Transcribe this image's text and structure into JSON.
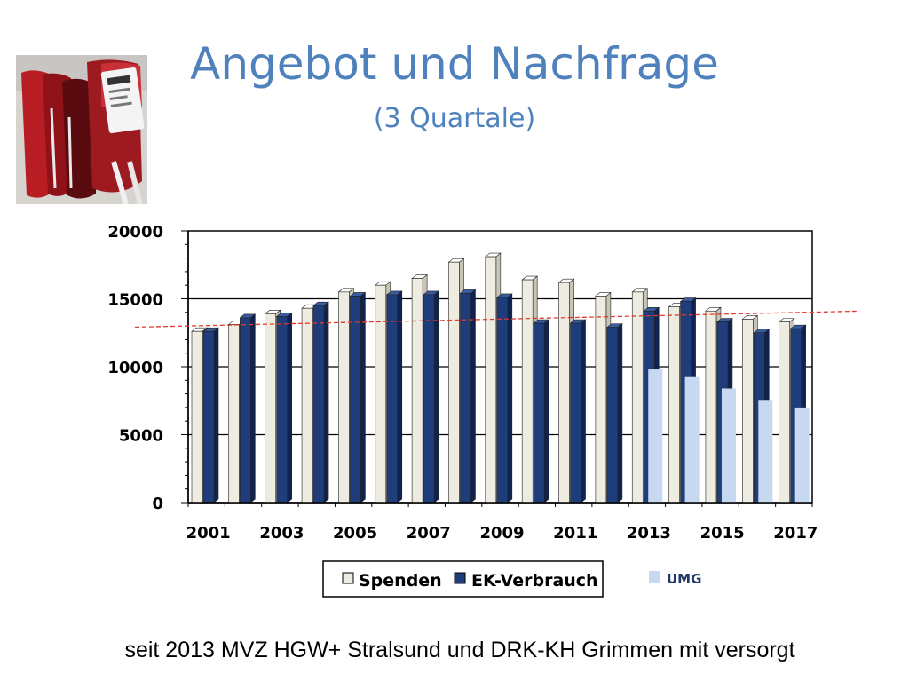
{
  "slide": {
    "title": "Angebot und Nachfrage",
    "subtitle": "(3 Quartale)",
    "footer": "seit 2013 MVZ HGW+ Stralsund und DRK-KH Grimmen mit versorgt"
  },
  "photo": {
    "icon": "blood-bags-photo"
  },
  "chart_data": {
    "type": "bar",
    "title": "",
    "xlabel": "",
    "ylabel": "",
    "ylim": [
      0,
      20000
    ],
    "yticks": [
      "0",
      "5000",
      "10000",
      "15000",
      "20000"
    ],
    "categories": [
      "2001",
      "2002",
      "2003",
      "2004",
      "2005",
      "2006",
      "2007",
      "2008",
      "2009",
      "2010",
      "2011",
      "2012",
      "2013",
      "2014",
      "2015",
      "2016",
      "2017"
    ],
    "xtick_labels": [
      "2001",
      "2003",
      "2005",
      "2007",
      "2009",
      "2011",
      "2013",
      "2015",
      "2017"
    ],
    "series": [
      {
        "name": "Spenden",
        "color": "#eeece1",
        "values": [
          12600,
          13100,
          13900,
          14300,
          15500,
          16000,
          16500,
          17700,
          18100,
          16400,
          16200,
          15200,
          15500,
          14400,
          14100,
          13500,
          13300
        ]
      },
      {
        "name": "EK-Verbrauch",
        "color": "#1f3d7a",
        "values": [
          12600,
          13600,
          13700,
          14500,
          15200,
          15300,
          15300,
          15400,
          15100,
          13200,
          13200,
          12900,
          14100,
          14800,
          13300,
          12500,
          12800
        ]
      },
      {
        "name": "UMG",
        "color": "#c6d9f1",
        "values": [
          null,
          null,
          null,
          null,
          null,
          null,
          null,
          null,
          null,
          null,
          null,
          null,
          9800,
          9300,
          8400,
          7500,
          7000
        ]
      }
    ],
    "reference_line": {
      "value": 13500,
      "color": "#e3382b",
      "style": "dashed"
    },
    "legend": {
      "position": "bottom",
      "entries": [
        "Spenden",
        "EK-Verbrauch"
      ],
      "extra_entry": "UMG"
    },
    "grid": true
  }
}
